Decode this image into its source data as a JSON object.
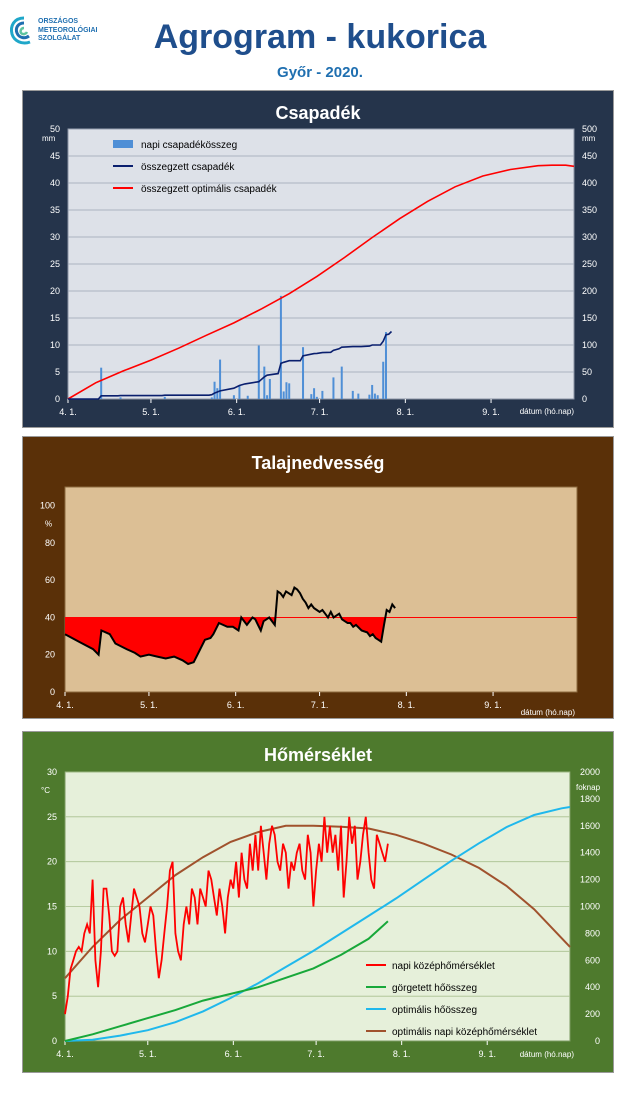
{
  "header": {
    "logo_lines": [
      "ORSZÁGOS",
      "METEOROLÓGIAI",
      "SZOLGÁLAT"
    ],
    "title": "Agrogram - kukorica",
    "subtitle": "Győr - 2020."
  },
  "colors": {
    "precip_panel": "#25344b",
    "soil_panel": "#5a3008",
    "temp_panel": "#4e7a2d",
    "daily_precip": "#4f8fd6",
    "cum_precip": "#0a1f6e",
    "opt_precip": "#ff0000",
    "soil_line": "#000000",
    "soil_fill": "#ff0000",
    "daily_temp": "#ff0000",
    "rolling_heat": "#18a83a",
    "opt_heat": "#20b8ec",
    "opt_temp": "#a0522d"
  },
  "chart_data": [
    {
      "type": "bar",
      "title": "Csapadék",
      "xlabel": "dátum (hó.nap)",
      "ylabel": "mm",
      "ylabel_right": "mm",
      "x_ticks": [
        "4. 1.",
        "5. 1.",
        "6. 1.",
        "7. 1.",
        "8. 1.",
        "9. 1."
      ],
      "x_tick_days": [
        0,
        30,
        61,
        91,
        122,
        153
      ],
      "xlim": [
        0,
        183
      ],
      "ylim": [
        0,
        50
      ],
      "ylim_right": [
        0,
        500
      ],
      "y_ticks": [
        "0",
        "5",
        "10",
        "15",
        "20",
        "25",
        "30",
        "35",
        "40",
        "45",
        "50"
      ],
      "y_ticks_right": [
        "0",
        "50",
        "100",
        "150",
        "200",
        "250",
        "300",
        "350",
        "400",
        "450",
        "500"
      ],
      "grid": true,
      "legend": "top-left",
      "series": [
        {
          "name": "napi csapadékösszeg",
          "axis": "left",
          "style": "bar",
          "days": [
            12,
            19,
            35,
            52,
            53,
            54,
            55,
            60,
            62,
            65,
            69,
            71,
            72,
            73,
            77,
            78,
            79,
            80,
            85,
            88,
            89,
            90,
            92,
            96,
            99,
            103,
            105,
            109,
            110,
            111,
            112,
            114,
            115
          ],
          "values": [
            5.8,
            0.3,
            0.4,
            0.3,
            3.2,
            2.0,
            7.3,
            0.7,
            2.5,
            0.6,
            9.9,
            6.0,
            0.7,
            3.7,
            19.1,
            1.4,
            3.1,
            2.9,
            9.6,
            0.9,
            2.0,
            0.4,
            1.5,
            4.0,
            6.0,
            1.5,
            1.0,
            0.8,
            2.6,
            1.0,
            0.7,
            6.9,
            12.4
          ]
        },
        {
          "name": "összegzett csapadék",
          "axis": "right",
          "style": "line",
          "days": [
            0,
            11,
            12,
            18,
            19,
            34,
            35,
            51,
            52,
            53,
            55,
            60,
            62,
            64,
            69,
            71,
            72,
            76,
            77,
            78,
            80,
            84,
            85,
            89,
            90,
            92,
            95,
            96,
            98,
            99,
            103,
            106,
            109,
            110,
            113,
            114,
            115,
            116,
            117
          ],
          "values": [
            0,
            0,
            6,
            6,
            6.3,
            6.3,
            7,
            7,
            8,
            11,
            15,
            20,
            25,
            28,
            32,
            41,
            44,
            47,
            66,
            68,
            71,
            71,
            80,
            84,
            84.5,
            86,
            86.5,
            90,
            93,
            96,
            97,
            97,
            98,
            100,
            100,
            107,
            119,
            120,
            125
          ]
        },
        {
          "name": "összegzett optimális  csapadék",
          "axis": "right",
          "style": "line",
          "days": [
            0,
            10,
            20,
            30,
            40,
            50,
            60,
            70,
            80,
            90,
            100,
            110,
            120,
            130,
            140,
            150,
            160,
            170,
            175,
            180,
            183
          ],
          "values": [
            0,
            30,
            52,
            72,
            94,
            118,
            141,
            167,
            195,
            227,
            262,
            299,
            334,
            366,
            393,
            413,
            425,
            432,
            433,
            433,
            431
          ]
        }
      ]
    },
    {
      "type": "area",
      "title": "Talajnedvesség",
      "xlabel": "dátum (hó.nap)",
      "ylabel": "%",
      "x_ticks": [
        "4. 1.",
        "5. 1.",
        "6. 1.",
        "7. 1.",
        "8. 1.",
        "9. 1."
      ],
      "x_tick_days": [
        0,
        30,
        61,
        91,
        122,
        153
      ],
      "xlim": [
        0,
        183
      ],
      "ylim": [
        0,
        110
      ],
      "y_ticks": [
        "0",
        "20",
        "40",
        "60",
        "80",
        "100"
      ],
      "y_tick_values": [
        0,
        20,
        40,
        60,
        80,
        100
      ],
      "threshold": 40,
      "grid": false,
      "series": [
        {
          "name": "talajnedvesség",
          "days": [
            0,
            5,
            10,
            12,
            13,
            16,
            18,
            22,
            25,
            27,
            30,
            33,
            36,
            39,
            42,
            44,
            46,
            48,
            50,
            52,
            53,
            55,
            58,
            60,
            62,
            63,
            65,
            67,
            68,
            69,
            70,
            71,
            73,
            75,
            76,
            77,
            78,
            79,
            81,
            82,
            83,
            84,
            85,
            86,
            87,
            88,
            89,
            90,
            91,
            92,
            93,
            94,
            95,
            96,
            97,
            98,
            99,
            100,
            101,
            102,
            103,
            104,
            106,
            108,
            109,
            110,
            111,
            112,
            113,
            114,
            115,
            116,
            117,
            118
          ],
          "values": [
            31,
            27,
            23,
            20,
            33,
            31,
            26,
            23,
            21,
            19,
            20,
            19,
            18,
            19,
            17,
            15,
            16,
            22,
            28,
            29,
            31,
            37,
            35,
            35,
            33,
            40,
            36,
            40,
            39,
            36,
            33,
            38,
            40,
            36,
            54,
            53,
            51,
            54,
            52,
            56,
            55,
            53,
            50,
            48,
            45,
            47,
            45,
            44,
            43,
            44,
            42,
            40,
            43,
            40,
            41,
            42,
            39,
            38,
            37,
            37,
            35,
            36,
            33,
            32,
            30,
            31,
            29,
            28,
            27,
            36,
            44,
            43,
            47,
            45
          ]
        }
      ]
    },
    {
      "type": "line",
      "title": "Hőmérséklet",
      "xlabel": "dátum (hó.nap)",
      "ylabel": "°C",
      "ylabel_right": "foknap",
      "x_ticks": [
        "4. 1.",
        "5. 1.",
        "6. 1.",
        "7. 1.",
        "8. 1.",
        "9. 1."
      ],
      "x_tick_days": [
        0,
        30,
        61,
        91,
        122,
        153
      ],
      "xlim": [
        0,
        183
      ],
      "ylim": [
        0,
        30
      ],
      "ylim_right": [
        0,
        2000
      ],
      "y_ticks": [
        "0",
        "5",
        "10",
        "15",
        "20",
        "25",
        "30"
      ],
      "y_ticks_right": [
        "0",
        "200",
        "400",
        "600",
        "800",
        "1000",
        "1200",
        "1400",
        "1600",
        "1800",
        "2000"
      ],
      "grid": true,
      "legend": "bottom-right",
      "series": [
        {
          "name": "napi középhőmérséklet",
          "axis": "left",
          "days": [
            0,
            1,
            2,
            3,
            4,
            5,
            6,
            7,
            8,
            9,
            10,
            11,
            12,
            13,
            14,
            15,
            16,
            17,
            18,
            19,
            20,
            21,
            22,
            23,
            24,
            25,
            26,
            27,
            28,
            29,
            30,
            31,
            32,
            33,
            34,
            35,
            36,
            37,
            38,
            39,
            40,
            41,
            42,
            43,
            44,
            45,
            46,
            47,
            48,
            49,
            50,
            51,
            52,
            53,
            54,
            55,
            56,
            57,
            58,
            59,
            60,
            61,
            62,
            63,
            64,
            65,
            66,
            67,
            68,
            69,
            70,
            71,
            72,
            73,
            74,
            75,
            76,
            77,
            78,
            79,
            80,
            81,
            82,
            83,
            84,
            85,
            86,
            87,
            88,
            89,
            90,
            91,
            92,
            93,
            94,
            95,
            96,
            97,
            98,
            99,
            100,
            101,
            102,
            103,
            104,
            105,
            106,
            107,
            108,
            109,
            110,
            111,
            112,
            113,
            114,
            115,
            116,
            117
          ],
          "values": [
            3,
            5,
            8,
            9,
            10,
            10.5,
            10,
            12,
            13,
            12,
            18,
            9,
            6,
            10,
            17,
            17,
            14,
            10,
            9.5,
            10,
            15,
            16,
            13,
            11,
            14,
            17,
            16,
            15,
            12,
            11,
            13,
            15,
            14,
            10,
            7,
            9,
            12,
            15,
            19,
            20,
            12,
            10,
            9,
            13,
            15,
            13,
            17,
            16,
            13,
            17,
            16,
            15,
            19,
            18,
            16,
            14,
            17,
            15,
            12,
            16,
            18,
            17,
            20,
            16,
            21,
            18,
            17,
            22,
            19,
            23,
            19,
            24,
            21,
            18,
            22,
            24,
            23,
            20,
            19,
            22,
            21,
            17,
            20,
            19,
            21,
            22,
            19,
            18,
            23,
            21,
            15,
            19,
            22,
            20,
            25,
            21,
            24,
            21,
            23,
            19,
            24,
            16,
            20,
            25,
            22,
            24,
            18,
            20,
            23,
            25,
            21,
            18,
            17,
            23,
            22,
            21,
            20,
            22
          ]
        },
        {
          "name": "görgetett hőösszeg",
          "axis": "right",
          "days": [
            0,
            10,
            20,
            30,
            40,
            50,
            60,
            70,
            80,
            90,
            100,
            110,
            117
          ],
          "values": [
            0,
            50,
            110,
            170,
            230,
            300,
            350,
            400,
            470,
            540,
            640,
            760,
            890
          ]
        },
        {
          "name": "optimális hőösszeg",
          "axis": "right",
          "days": [
            0,
            10,
            20,
            30,
            40,
            50,
            60,
            70,
            80,
            90,
            100,
            110,
            120,
            130,
            140,
            150,
            160,
            170,
            180,
            183
          ],
          "values": [
            0,
            10,
            40,
            80,
            140,
            220,
            320,
            430,
            550,
            670,
            800,
            930,
            1060,
            1200,
            1340,
            1470,
            1590,
            1680,
            1730,
            1740
          ]
        },
        {
          "name": "optimális napi középhőmérséklet",
          "axis": "left",
          "days": [
            0,
            10,
            20,
            30,
            40,
            50,
            60,
            70,
            80,
            90,
            100,
            110,
            120,
            130,
            140,
            150,
            160,
            170,
            183
          ],
          "values": [
            7,
            10.5,
            13.5,
            16,
            18.5,
            20.5,
            22.2,
            23.3,
            24,
            24,
            23.9,
            23.7,
            23,
            22,
            20.8,
            19.3,
            17.3,
            14.7,
            10.5
          ]
        }
      ]
    }
  ]
}
